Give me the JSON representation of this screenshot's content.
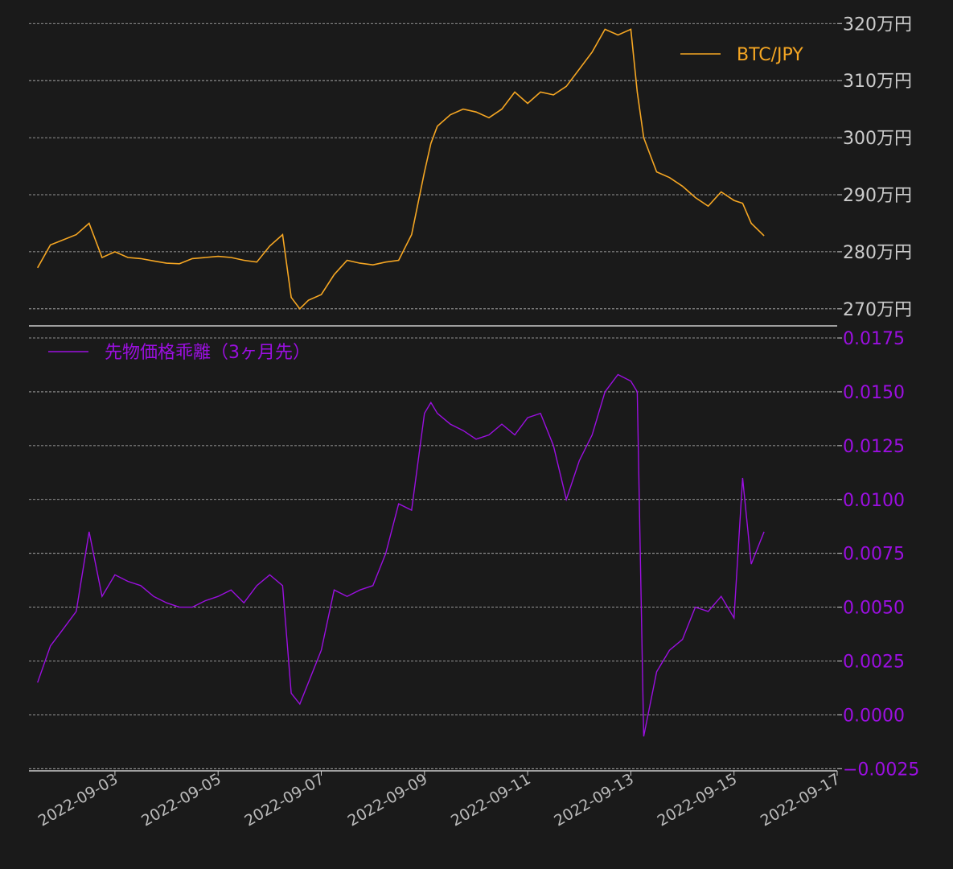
{
  "chart_data": [
    {
      "type": "line",
      "series": [
        {
          "name": "BTC/JPY",
          "color": "#f5a623"
        }
      ],
      "y_ticks": [
        "270万円",
        "280万円",
        "290万円",
        "300万円",
        "310万円",
        "320万円"
      ],
      "ylim": [
        2680000,
        3230000
      ],
      "grid": true,
      "legend": "top-right",
      "x": [
        "2022-09-01T12:00",
        "2022-09-01T18:00",
        "2022-09-02T00:00",
        "2022-09-02T06:00",
        "2022-09-02T12:00",
        "2022-09-02T18:00",
        "2022-09-03T00:00",
        "2022-09-03T06:00",
        "2022-09-03T12:00",
        "2022-09-03T18:00",
        "2022-09-04T00:00",
        "2022-09-04T06:00",
        "2022-09-04T12:00",
        "2022-09-04T18:00",
        "2022-09-05T00:00",
        "2022-09-05T06:00",
        "2022-09-05T12:00",
        "2022-09-05T18:00",
        "2022-09-06T00:00",
        "2022-09-06T06:00",
        "2022-09-06T10:00",
        "2022-09-06T14:00",
        "2022-09-06T18:00",
        "2022-09-07T00:00",
        "2022-09-07T06:00",
        "2022-09-07T12:00",
        "2022-09-07T18:00",
        "2022-09-08T00:00",
        "2022-09-08T06:00",
        "2022-09-08T12:00",
        "2022-09-08T18:00",
        "2022-09-09T00:00",
        "2022-09-09T03:00",
        "2022-09-09T06:00",
        "2022-09-09T12:00",
        "2022-09-09T18:00",
        "2022-09-10T00:00",
        "2022-09-10T06:00",
        "2022-09-10T12:00",
        "2022-09-10T18:00",
        "2022-09-11T00:00",
        "2022-09-11T06:00",
        "2022-09-11T12:00",
        "2022-09-11T18:00",
        "2022-09-12T00:00",
        "2022-09-12T06:00",
        "2022-09-12T12:00",
        "2022-09-12T18:00",
        "2022-09-13T00:00",
        "2022-09-13T03:00",
        "2022-09-13T06:00",
        "2022-09-13T12:00",
        "2022-09-13T18:00",
        "2022-09-14T00:00",
        "2022-09-14T06:00",
        "2022-09-14T12:00",
        "2022-09-14T18:00",
        "2022-09-15T00:00",
        "2022-09-15T04:00",
        "2022-09-15T08:00",
        "2022-09-15T14:00"
      ],
      "values": [
        2772000,
        2812000,
        2821000,
        2830000,
        2850000,
        2790000,
        2800000,
        2790000,
        2788000,
        2784000,
        2780000,
        2779000,
        2788000,
        2790000,
        2792000,
        2790000,
        2785000,
        2782000,
        2810000,
        2830000,
        2720000,
        2700000,
        2715000,
        2725000,
        2760000,
        2785000,
        2780000,
        2777000,
        2782000,
        2785000,
        2830000,
        2940000,
        2990000,
        3020000,
        3040000,
        3050000,
        3045000,
        3035000,
        3050000,
        3080000,
        3060000,
        3080000,
        3075000,
        3090000,
        3120000,
        3150000,
        3190000,
        3180000,
        3190000,
        3080000,
        3000000,
        2940000,
        2930000,
        2915000,
        2895000,
        2880000,
        2905000,
        2890000,
        2885000,
        2850000,
        2828000
      ]
    },
    {
      "type": "line",
      "series": [
        {
          "name": "先物価格乖離（3ヶ月先）",
          "color": "#9b0fe0"
        }
      ],
      "y_ticks": [
        "−0.0025",
        "0.0000",
        "0.0025",
        "0.0050",
        "0.0075",
        "0.0100",
        "0.0125",
        "0.0150",
        "0.0175"
      ],
      "ylim": [
        -0.0026,
        0.0178
      ],
      "grid": true,
      "legend": "top-left",
      "x_ticks": [
        "2022-09-03",
        "2022-09-05",
        "2022-09-07",
        "2022-09-09",
        "2022-09-11",
        "2022-09-13",
        "2022-09-15",
        "2022-09-17"
      ],
      "xlim": [
        "2022-09-01T08:00",
        "2022-09-17T00:00"
      ],
      "x": [
        "2022-09-01T12:00",
        "2022-09-01T18:00",
        "2022-09-02T00:00",
        "2022-09-02T06:00",
        "2022-09-02T12:00",
        "2022-09-02T18:00",
        "2022-09-03T00:00",
        "2022-09-03T06:00",
        "2022-09-03T12:00",
        "2022-09-03T18:00",
        "2022-09-04T00:00",
        "2022-09-04T06:00",
        "2022-09-04T12:00",
        "2022-09-04T18:00",
        "2022-09-05T00:00",
        "2022-09-05T06:00",
        "2022-09-05T12:00",
        "2022-09-05T18:00",
        "2022-09-06T00:00",
        "2022-09-06T06:00",
        "2022-09-06T10:00",
        "2022-09-06T14:00",
        "2022-09-06T18:00",
        "2022-09-07T00:00",
        "2022-09-07T06:00",
        "2022-09-07T12:00",
        "2022-09-07T18:00",
        "2022-09-08T00:00",
        "2022-09-08T06:00",
        "2022-09-08T12:00",
        "2022-09-08T18:00",
        "2022-09-09T00:00",
        "2022-09-09T03:00",
        "2022-09-09T06:00",
        "2022-09-09T12:00",
        "2022-09-09T18:00",
        "2022-09-10T00:00",
        "2022-09-10T06:00",
        "2022-09-10T12:00",
        "2022-09-10T18:00",
        "2022-09-11T00:00",
        "2022-09-11T06:00",
        "2022-09-11T12:00",
        "2022-09-11T18:00",
        "2022-09-12T00:00",
        "2022-09-12T06:00",
        "2022-09-12T12:00",
        "2022-09-12T18:00",
        "2022-09-13T00:00",
        "2022-09-13T03:00",
        "2022-09-13T06:00",
        "2022-09-13T12:00",
        "2022-09-13T18:00",
        "2022-09-14T00:00",
        "2022-09-14T06:00",
        "2022-09-14T12:00",
        "2022-09-14T18:00",
        "2022-09-15T00:00",
        "2022-09-15T04:00",
        "2022-09-15T08:00",
        "2022-09-15T14:00"
      ],
      "values": [
        0.0015,
        0.0032,
        0.004,
        0.0048,
        0.0085,
        0.0055,
        0.0065,
        0.0062,
        0.006,
        0.0055,
        0.0052,
        0.005,
        0.005,
        0.0053,
        0.0055,
        0.0058,
        0.0052,
        0.006,
        0.0065,
        0.006,
        0.001,
        0.0005,
        0.0015,
        0.003,
        0.0058,
        0.0055,
        0.0058,
        0.006,
        0.0075,
        0.0098,
        0.0095,
        0.014,
        0.0145,
        0.014,
        0.0135,
        0.0132,
        0.0128,
        0.013,
        0.0135,
        0.013,
        0.0138,
        0.014,
        0.0125,
        0.01,
        0.0118,
        0.013,
        0.015,
        0.0158,
        0.0155,
        0.015,
        -0.001,
        0.002,
        0.003,
        0.0035,
        0.005,
        0.0048,
        0.0055,
        0.0045,
        0.011,
        0.007,
        0.0085
      ]
    }
  ]
}
